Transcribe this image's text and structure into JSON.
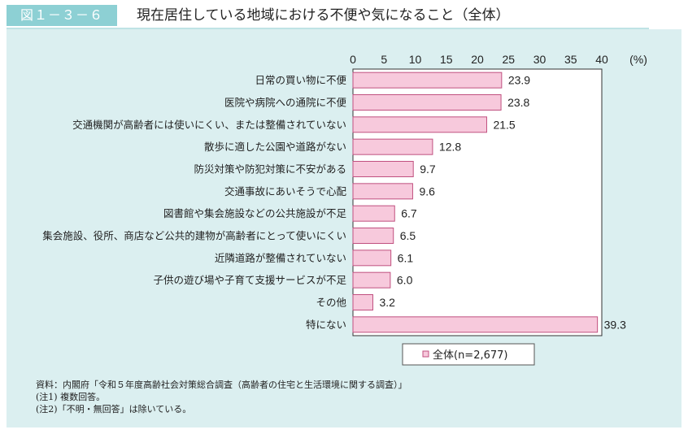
{
  "figure": {
    "label": "図１－３－６",
    "title": "現在居住している地域における不便や気になること（全体）"
  },
  "chart_data": {
    "type": "bar",
    "orientation": "horizontal",
    "categories": [
      "日常の買い物に不便",
      "医院や病院への通院に不便",
      "交通機関が高齢者には使いにくい、または整備されていない",
      "散歩に適した公園や道路がない",
      "防災対策や防犯対策に不安がある",
      "交通事故にあいそうで心配",
      "図書館や集会施設などの公共施設が不足",
      "集会施設、役所、商店など公共的建物が高齢者にとって使いにくい",
      "近隣道路が整備されていない",
      "子供の遊び場や子育て支援サービスが不足",
      "その他",
      "特にない"
    ],
    "series": [
      {
        "name": "全体(n=2,677)",
        "values": [
          23.9,
          23.8,
          21.5,
          12.8,
          9.7,
          9.6,
          6.7,
          6.5,
          6.1,
          6.0,
          3.2,
          39.3
        ],
        "labels": [
          "23.9",
          "23.8",
          "21.5",
          "12.8",
          "9.7",
          "9.6",
          "6.7",
          "6.5",
          "6.1",
          "6.0",
          "3.2",
          "39.3"
        ]
      }
    ],
    "xlim": [
      0,
      40
    ],
    "xticks": [
      "0",
      "5",
      "10",
      "15",
      "20",
      "25",
      "30",
      "35",
      "40"
    ],
    "xunit": "(%)",
    "legend": "bottom",
    "bar_color": "#f7c9dc",
    "bar_stroke": "#c0507f"
  },
  "notes": [
    "資料：内閣府「令和５年度高齢社会対策総合調査（高齢者の住宅と生活環境に関する調査）」",
    "(注1) 複数回答。",
    "(注2)「不明・無回答」は除いている。"
  ]
}
